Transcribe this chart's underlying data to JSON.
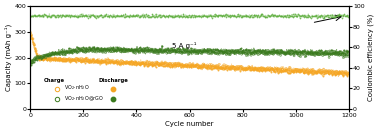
{
  "xlabel": "Cycle number",
  "ylabel_left": "Capacity (mAh g⁻¹)",
  "ylabel_right": "Coulombic efficiency (%)",
  "xlim": [
    0,
    1200
  ],
  "ylim_left": [
    0,
    400
  ],
  "ylim_right": [
    0,
    100
  ],
  "color_orange": "#F5A623",
  "color_green": "#3A7A1E",
  "color_ce": "#5BAD3A",
  "annotation": "5 A g⁻¹",
  "xticks": [
    0,
    200,
    400,
    600,
    800,
    1000,
    1200
  ],
  "yticks_left": [
    0,
    100,
    200,
    300,
    400
  ],
  "yticks_right": [
    0,
    20,
    40,
    60,
    80,
    100
  ]
}
